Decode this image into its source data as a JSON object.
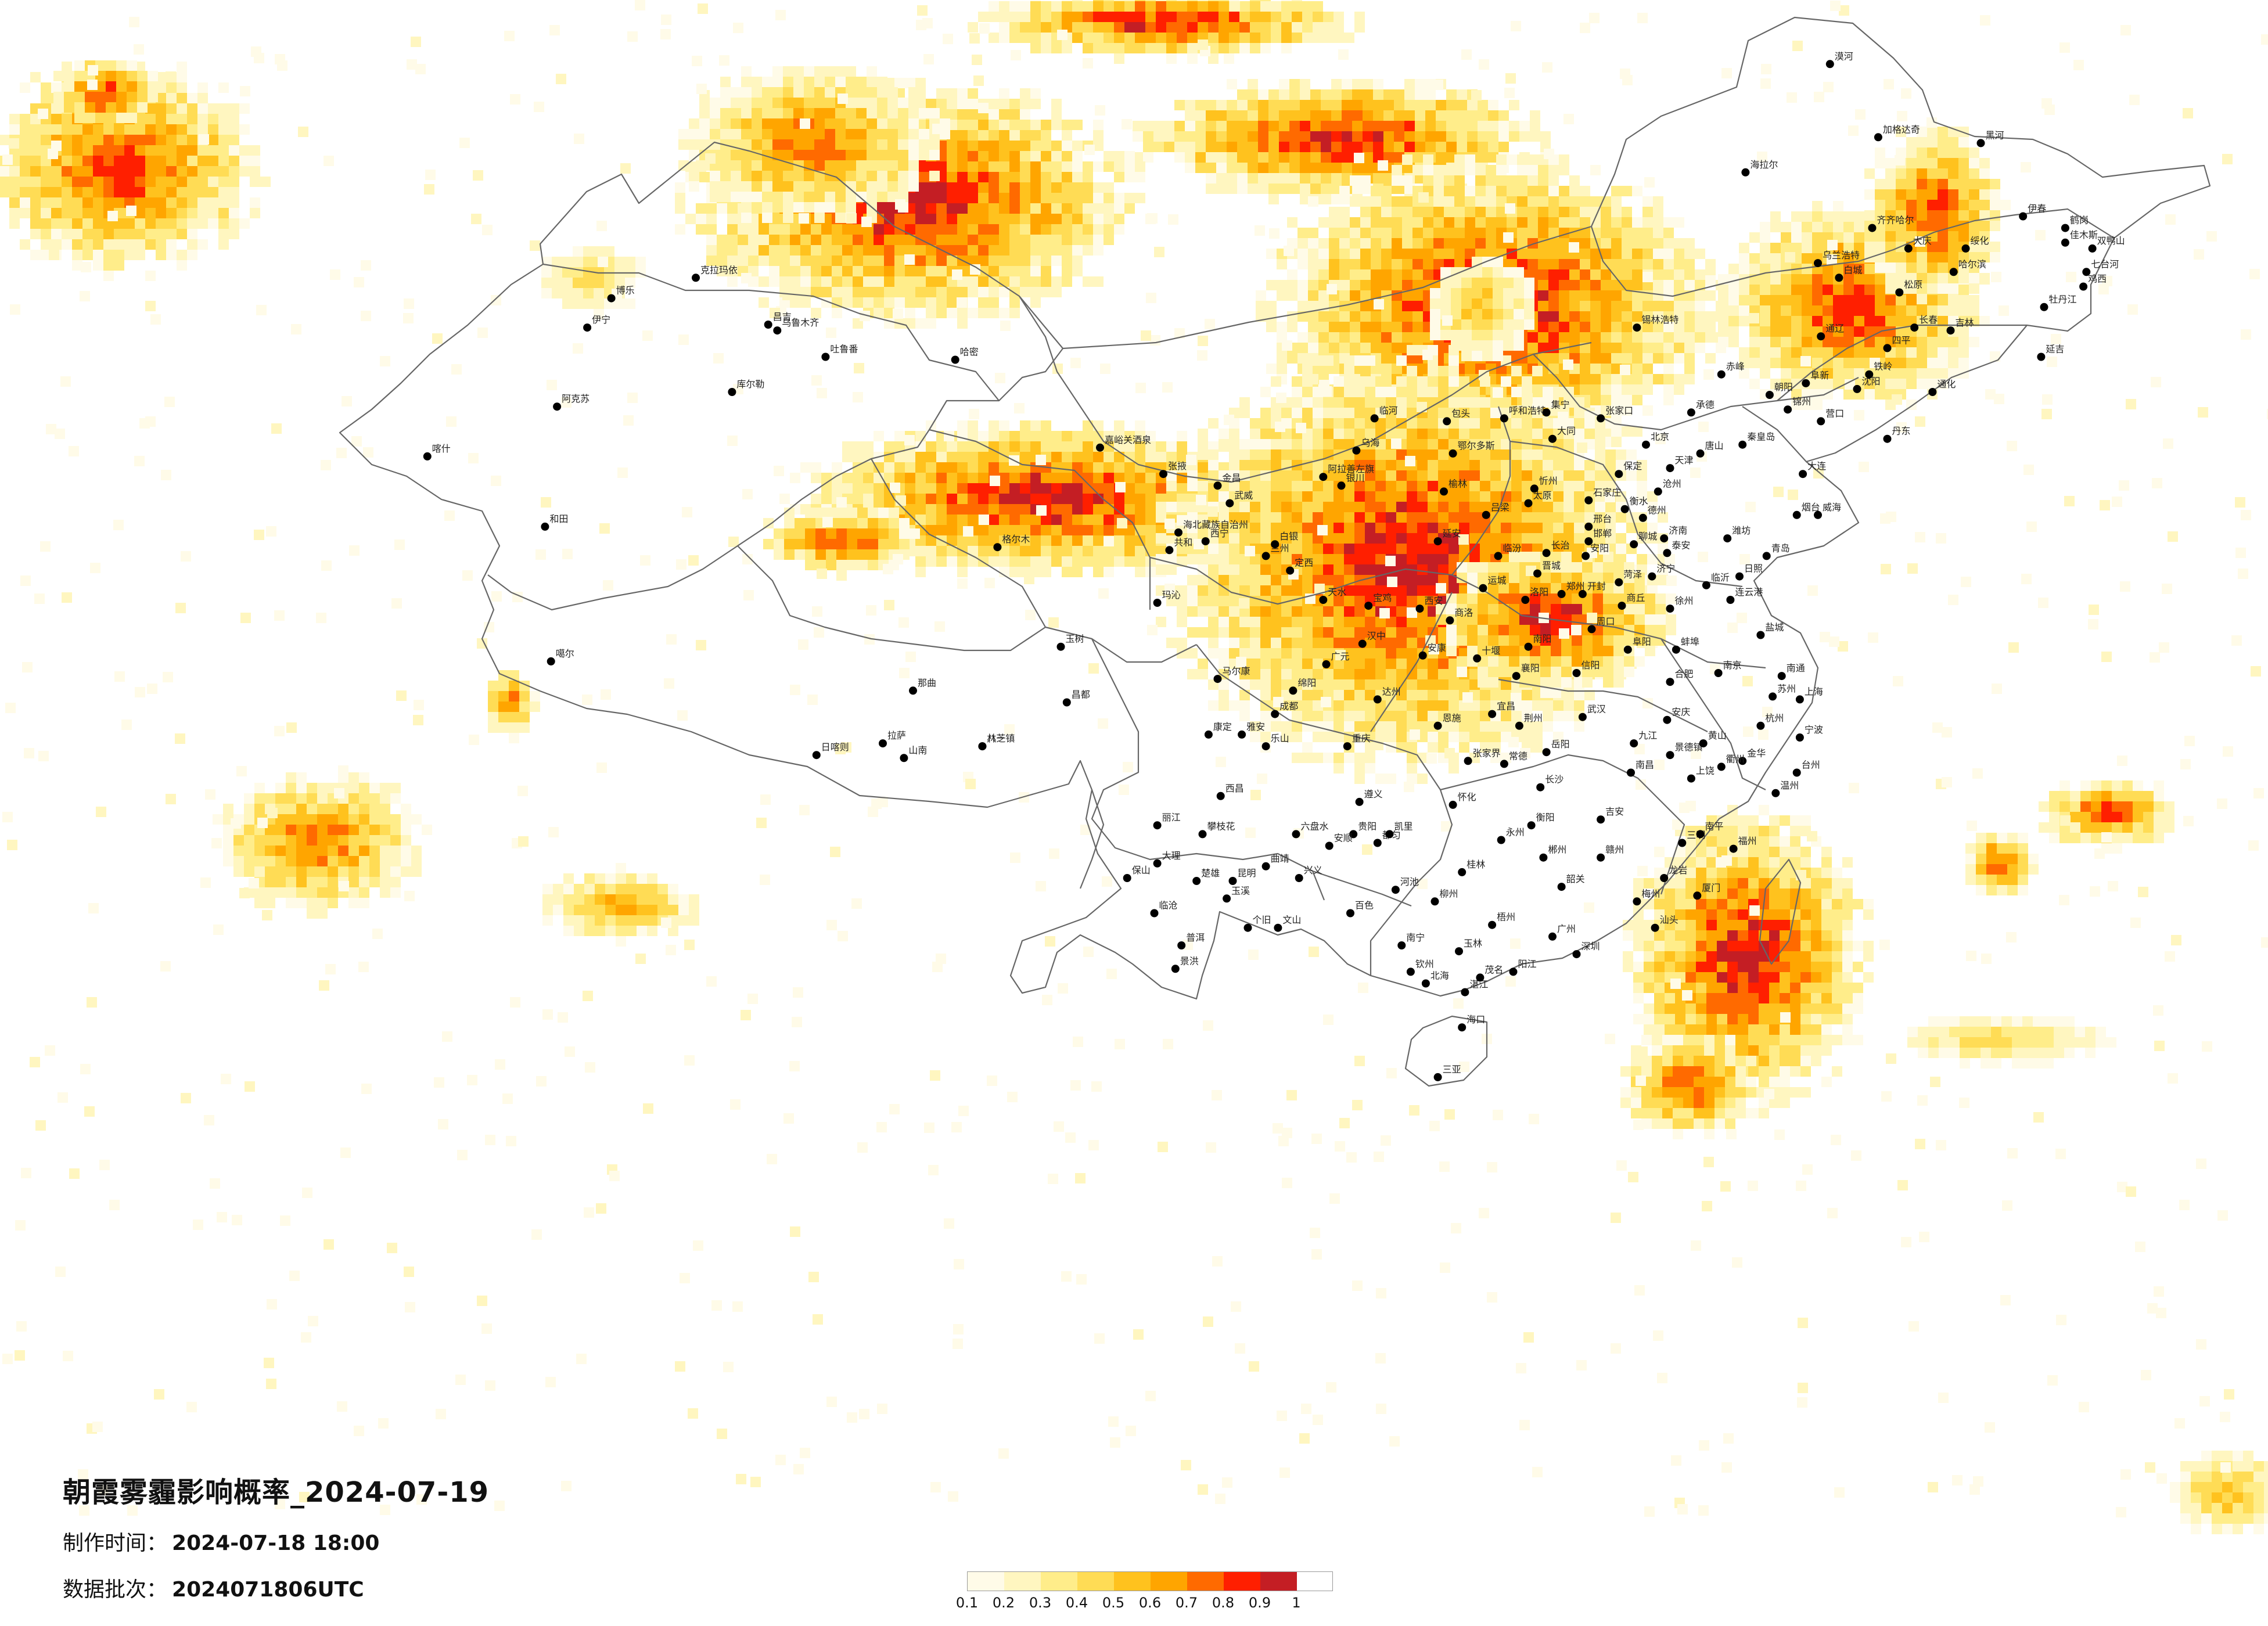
{
  "title": "朝霞雾霾影响概率_2024-07-19",
  "made_time": {
    "label": "制作时间：",
    "value": "2024-07-18 18:00"
  },
  "data_batch": {
    "label": "数据批次：",
    "value": "2024071806UTC"
  },
  "legend": {
    "ticks": [
      "0.1",
      "0.2",
      "0.3",
      "0.4",
      "0.5",
      "0.6",
      "0.7",
      "0.8",
      "0.9",
      "1"
    ],
    "colors": [
      "#fffbe8",
      "#fff6c0",
      "#ffed8a",
      "#ffdc55",
      "#ffc21e",
      "#ffa500",
      "#ff6a00",
      "#ff1f00",
      "#c41e24"
    ]
  },
  "cities": [
    {
      "name": "克拉玛依",
      "lon": 84.9,
      "lat": 45.6
    },
    {
      "name": "昌吉",
      "lon": 87.3,
      "lat": 44.0
    },
    {
      "name": "乌鲁木齐",
      "lon": 87.6,
      "lat": 43.8
    },
    {
      "name": "吐鲁番",
      "lon": 89.2,
      "lat": 42.9
    },
    {
      "name": "哈密",
      "lon": 93.5,
      "lat": 42.8
    },
    {
      "name": "伊宁",
      "lon": 81.3,
      "lat": 43.9
    },
    {
      "name": "博乐",
      "lon": 82.1,
      "lat": 44.9
    },
    {
      "name": "库尔勒",
      "lon": 86.1,
      "lat": 41.7
    },
    {
      "name": "阿克苏",
      "lon": 80.3,
      "lat": 41.2
    },
    {
      "name": "喀什",
      "lon": 76.0,
      "lat": 39.5
    },
    {
      "name": "和田",
      "lon": 79.9,
      "lat": 37.1
    },
    {
      "name": "嘉峪关酒泉",
      "lon": 98.3,
      "lat": 39.8
    },
    {
      "name": "张掖",
      "lon": 100.4,
      "lat": 38.9
    },
    {
      "name": "金昌",
      "lon": 102.2,
      "lat": 38.5
    },
    {
      "name": "武威",
      "lon": 102.6,
      "lat": 37.9
    },
    {
      "name": "海北藏族自治州",
      "lon": 100.9,
      "lat": 36.9
    },
    {
      "name": "西宁",
      "lon": 101.8,
      "lat": 36.6
    },
    {
      "name": "共和",
      "lon": 100.6,
      "lat": 36.3
    },
    {
      "name": "兰州",
      "lon": 103.8,
      "lat": 36.1
    },
    {
      "name": "白银",
      "lon": 104.1,
      "lat": 36.5
    },
    {
      "name": "阿拉善左旗",
      "lon": 105.7,
      "lat": 38.8
    },
    {
      "name": "银川",
      "lon": 106.3,
      "lat": 38.5
    },
    {
      "name": "定西",
      "lon": 104.6,
      "lat": 35.6
    },
    {
      "name": "天水",
      "lon": 105.7,
      "lat": 34.6
    },
    {
      "name": "玛沁",
      "lon": 100.2,
      "lat": 34.5
    },
    {
      "name": "格尔木",
      "lon": 94.9,
      "lat": 36.4
    },
    {
      "name": "噶尔",
      "lon": 80.1,
      "lat": 32.5
    },
    {
      "name": "日喀则",
      "lon": 88.9,
      "lat": 29.3
    },
    {
      "name": "拉萨",
      "lon": 91.1,
      "lat": 29.7
    },
    {
      "name": "山南",
      "lon": 91.8,
      "lat": 29.2
    },
    {
      "name": "八一镇",
      "lon": 94.4,
      "lat": 29.6
    },
    {
      "name": "林芝",
      "lon": 94.4,
      "lat": 29.6
    },
    {
      "name": "那曲",
      "lon": 92.1,
      "lat": 31.5
    },
    {
      "name": "玉树",
      "lon": 97.0,
      "lat": 33.0
    },
    {
      "name": "昌都",
      "lon": 97.2,
      "lat": 31.1
    },
    {
      "name": "马尔康",
      "lon": 102.2,
      "lat": 31.9
    },
    {
      "name": "康定",
      "lon": 101.9,
      "lat": 30.0
    },
    {
      "name": "雅安",
      "lon": 103.0,
      "lat": 30.0
    },
    {
      "name": "成都",
      "lon": 104.1,
      "lat": 30.7
    },
    {
      "name": "绵阳",
      "lon": 104.7,
      "lat": 31.5
    },
    {
      "name": "乐山",
      "lon": 103.8,
      "lat": 29.6
    },
    {
      "name": "西昌",
      "lon": 102.3,
      "lat": 27.9
    },
    {
      "name": "攀枝花",
      "lon": 101.7,
      "lat": 26.6
    },
    {
      "name": "丽江",
      "lon": 100.2,
      "lat": 26.9
    },
    {
      "name": "大理",
      "lon": 100.2,
      "lat": 25.6
    },
    {
      "name": "保山",
      "lon": 99.2,
      "lat": 25.1
    },
    {
      "name": "楚雄",
      "lon": 101.5,
      "lat": 25.0
    },
    {
      "name": "昆明",
      "lon": 102.7,
      "lat": 25.0
    },
    {
      "name": "曲靖",
      "lon": 103.8,
      "lat": 25.5
    },
    {
      "name": "玉溪",
      "lon": 102.5,
      "lat": 24.4
    },
    {
      "name": "普洱",
      "lon": 101.0,
      "lat": 22.8
    },
    {
      "name": "景洪",
      "lon": 100.8,
      "lat": 22.0
    },
    {
      "name": "个旧",
      "lon": 103.2,
      "lat": 23.4
    },
    {
      "name": "文山",
      "lon": 104.2,
      "lat": 23.4
    },
    {
      "name": "临沧",
      "lon": 100.1,
      "lat": 23.9
    },
    {
      "name": "贵阳",
      "lon": 106.7,
      "lat": 26.6
    },
    {
      "name": "遵义",
      "lon": 106.9,
      "lat": 27.7
    },
    {
      "name": "六盘水",
      "lon": 104.8,
      "lat": 26.6
    },
    {
      "name": "安顺",
      "lon": 105.9,
      "lat": 26.2
    },
    {
      "name": "都匀",
      "lon": 107.5,
      "lat": 26.3
    },
    {
      "name": "凯里",
      "lon": 107.9,
      "lat": 26.6
    },
    {
      "name": "兴义",
      "lon": 104.9,
      "lat": 25.1
    },
    {
      "name": "重庆",
      "lon": 106.5,
      "lat": 29.6
    },
    {
      "name": "达州",
      "lon": 107.5,
      "lat": 31.2
    },
    {
      "name": "广元",
      "lon": 105.8,
      "lat": 32.4
    },
    {
      "name": "汉中",
      "lon": 107.0,
      "lat": 33.1
    },
    {
      "name": "宝鸡",
      "lon": 107.2,
      "lat": 34.4
    },
    {
      "name": "西安",
      "lon": 108.9,
      "lat": 34.3
    },
    {
      "name": "延安",
      "lon": 109.5,
      "lat": 36.6
    },
    {
      "name": "榆林",
      "lon": 109.7,
      "lat": 38.3
    },
    {
      "name": "安康",
      "lon": 109.0,
      "lat": 32.7
    },
    {
      "name": "商洛",
      "lon": 109.9,
      "lat": 33.9
    },
    {
      "name": "南宁",
      "lon": 108.3,
      "lat": 22.8
    },
    {
      "name": "柳州",
      "lon": 109.4,
      "lat": 24.3
    },
    {
      "name": "桂林",
      "lon": 110.3,
      "lat": 25.3
    },
    {
      "name": "梧州",
      "lon": 111.3,
      "lat": 23.5
    },
    {
      "name": "百色",
      "lon": 106.6,
      "lat": 23.9
    },
    {
      "name": "河池",
      "lon": 108.1,
      "lat": 24.7
    },
    {
      "name": "钦州",
      "lon": 108.6,
      "lat": 21.9
    },
    {
      "name": "北海",
      "lon": 109.1,
      "lat": 21.5
    },
    {
      "name": "玉林",
      "lon": 110.2,
      "lat": 22.6
    },
    {
      "name": "海口",
      "lon": 110.3,
      "lat": 20.0
    },
    {
      "name": "三亚",
      "lon": 109.5,
      "lat": 18.3
    },
    {
      "name": "湛江",
      "lon": 110.4,
      "lat": 21.2
    },
    {
      "name": "茂名",
      "lon": 110.9,
      "lat": 21.7
    },
    {
      "name": "阳江",
      "lon": 112.0,
      "lat": 21.9
    },
    {
      "name": "广州",
      "lon": 113.3,
      "lat": 23.1
    },
    {
      "name": "深圳",
      "lon": 114.1,
      "lat": 22.5
    },
    {
      "name": "韶关",
      "lon": 113.6,
      "lat": 24.8
    },
    {
      "name": "梅州",
      "lon": 116.1,
      "lat": 24.3
    },
    {
      "name": "汕头",
      "lon": 116.7,
      "lat": 23.4
    },
    {
      "name": "厦门",
      "lon": 118.1,
      "lat": 24.5
    },
    {
      "name": "福州",
      "lon": 119.3,
      "lat": 26.1
    },
    {
      "name": "龙岩",
      "lon": 117.0,
      "lat": 25.1
    },
    {
      "name": "三明",
      "lon": 117.6,
      "lat": 26.3
    },
    {
      "name": "南平",
      "lon": 118.2,
      "lat": 26.6
    },
    {
      "name": "长沙",
      "lon": 112.9,
      "lat": 28.2
    },
    {
      "name": "衡阳",
      "lon": 112.6,
      "lat": 26.9
    },
    {
      "name": "郴州",
      "lon": 113.0,
      "lat": 25.8
    },
    {
      "name": "怀化",
      "lon": 110.0,
      "lat": 27.6
    },
    {
      "name": "常德",
      "lon": 111.7,
      "lat": 29.0
    },
    {
      "name": "岳阳",
      "lon": 113.1,
      "lat": 29.4
    },
    {
      "name": "张家界",
      "lon": 110.5,
      "lat": 29.1
    },
    {
      "name": "永州",
      "lon": 111.6,
      "lat": 26.4
    },
    {
      "name": "南昌",
      "lon": 115.9,
      "lat": 28.7
    },
    {
      "name": "九江",
      "lon": 116.0,
      "lat": 29.7
    },
    {
      "name": "赣州",
      "lon": 114.9,
      "lat": 25.8
    },
    {
      "name": "吉安",
      "lon": 114.9,
      "lat": 27.1
    },
    {
      "name": "上饶",
      "lon": 117.9,
      "lat": 28.5
    },
    {
      "name": "景德镇",
      "lon": 117.2,
      "lat": 29.3
    },
    {
      "name": "武汉",
      "lon": 114.3,
      "lat": 30.6
    },
    {
      "name": "宜昌",
      "lon": 111.3,
      "lat": 30.7
    },
    {
      "name": "荆州",
      "lon": 112.2,
      "lat": 30.3
    },
    {
      "name": "襄阳",
      "lon": 112.1,
      "lat": 32.0
    },
    {
      "name": "十堰",
      "lon": 110.8,
      "lat": 32.6
    },
    {
      "name": "恩施",
      "lon": 109.5,
      "lat": 30.3
    },
    {
      "name": "郑州",
      "lon": 113.6,
      "lat": 34.8
    },
    {
      "name": "洛阳",
      "lon": 112.4,
      "lat": 34.6
    },
    {
      "name": "开封",
      "lon": 114.3,
      "lat": 34.8
    },
    {
      "name": "南阳",
      "lon": 112.5,
      "lat": 33.0
    },
    {
      "name": "信阳",
      "lon": 114.1,
      "lat": 32.1
    },
    {
      "name": "商丘",
      "lon": 115.6,
      "lat": 34.4
    },
    {
      "name": "周口",
      "lon": 114.6,
      "lat": 33.6
    },
    {
      "name": "安阳",
      "lon": 114.4,
      "lat": 36.1
    },
    {
      "name": "合肥",
      "lon": 117.2,
      "lat": 31.8
    },
    {
      "name": "阜阳",
      "lon": 115.8,
      "lat": 32.9
    },
    {
      "name": "蚌埠",
      "lon": 117.4,
      "lat": 32.9
    },
    {
      "name": "安庆",
      "lon": 117.1,
      "lat": 30.5
    },
    {
      "name": "黄山",
      "lon": 118.3,
      "lat": 29.7
    },
    {
      "name": "南京",
      "lon": 118.8,
      "lat": 32.1
    },
    {
      "name": "徐州",
      "lon": 117.2,
      "lat": 34.3
    },
    {
      "name": "连云港",
      "lon": 119.2,
      "lat": 34.6
    },
    {
      "name": "盐城",
      "lon": 120.2,
      "lat": 33.4
    },
    {
      "name": "南通",
      "lon": 120.9,
      "lat": 32.0
    },
    {
      "name": "苏州",
      "lon": 120.6,
      "lat": 31.3
    },
    {
      "name": "上海",
      "lon": 121.5,
      "lat": 31.2
    },
    {
      "name": "杭州",
      "lon": 120.2,
      "lat": 30.3
    },
    {
      "name": "宁波",
      "lon": 121.5,
      "lat": 29.9
    },
    {
      "name": "温州",
      "lon": 120.7,
      "lat": 28.0
    },
    {
      "name": "金华",
      "lon": 119.6,
      "lat": 29.1
    },
    {
      "name": "衢州",
      "lon": 118.9,
      "lat": 28.9
    },
    {
      "name": "台州",
      "lon": 121.4,
      "lat": 28.7
    },
    {
      "name": "济南",
      "lon": 117.0,
      "lat": 36.7
    },
    {
      "name": "青岛",
      "lon": 120.4,
      "lat": 36.1
    },
    {
      "name": "烟台",
      "lon": 121.4,
      "lat": 37.5
    },
    {
      "name": "威海",
      "lon": 122.1,
      "lat": 37.5
    },
    {
      "name": "潍坊",
      "lon": 119.1,
      "lat": 36.7
    },
    {
      "name": "临沂",
      "lon": 118.4,
      "lat": 35.1
    },
    {
      "name": "济宁",
      "lon": 116.6,
      "lat": 35.4
    },
    {
      "name": "德州",
      "lon": 116.3,
      "lat": 37.4
    },
    {
      "name": "聊城",
      "lon": 116.0,
      "lat": 36.5
    },
    {
      "name": "菏泽",
      "lon": 115.5,
      "lat": 35.2
    },
    {
      "name": "泰安",
      "lon": 117.1,
      "lat": 36.2
    },
    {
      "name": "日照",
      "lon": 119.5,
      "lat": 35.4
    },
    {
      "name": "石家庄",
      "lon": 114.5,
      "lat": 38.0
    },
    {
      "name": "保定",
      "lon": 115.5,
      "lat": 38.9
    },
    {
      "name": "张家口",
      "lon": 114.9,
      "lat": 40.8
    },
    {
      "name": "承德",
      "lon": 117.9,
      "lat": 41.0
    },
    {
      "name": "唐山",
      "lon": 118.2,
      "lat": 39.6
    },
    {
      "name": "秦皇岛",
      "lon": 119.6,
      "lat": 39.9
    },
    {
      "name": "沧州",
      "lon": 116.8,
      "lat": 38.3
    },
    {
      "name": "衡水",
      "lon": 115.7,
      "lat": 37.7
    },
    {
      "name": "邢台",
      "lon": 114.5,
      "lat": 37.1
    },
    {
      "name": "邯郸",
      "lon": 114.5,
      "lat": 36.6
    },
    {
      "name": "北京",
      "lon": 116.4,
      "lat": 39.9
    },
    {
      "name": "天津",
      "lon": 117.2,
      "lat": 39.1
    },
    {
      "name": "太原",
      "lon": 112.5,
      "lat": 37.9
    },
    {
      "name": "大同",
      "lon": 113.3,
      "lat": 40.1
    },
    {
      "name": "忻州",
      "lon": 112.7,
      "lat": 38.4
    },
    {
      "name": "吕梁",
      "lon": 111.1,
      "lat": 37.5
    },
    {
      "name": "临汾",
      "lon": 111.5,
      "lat": 36.1
    },
    {
      "name": "运城",
      "lon": 111.0,
      "lat": 35.0
    },
    {
      "name": "长治",
      "lon": 113.1,
      "lat": 36.2
    },
    {
      "name": "晋城",
      "lon": 112.8,
      "lat": 35.5
    },
    {
      "name": "呼和浩特",
      "lon": 111.7,
      "lat": 40.8
    },
    {
      "name": "包头",
      "lon": 109.8,
      "lat": 40.7
    },
    {
      "name": "鄂尔多斯",
      "lon": 110.0,
      "lat": 39.6
    },
    {
      "name": "临河",
      "lon": 107.4,
      "lat": 40.8
    },
    {
      "name": "乌海",
      "lon": 106.8,
      "lat": 39.7
    },
    {
      "name": "集宁",
      "lon": 113.1,
      "lat": 41.0
    },
    {
      "name": "锡林浩特",
      "lon": 116.1,
      "lat": 43.9
    },
    {
      "name": "赤峰",
      "lon": 118.9,
      "lat": 42.3
    },
    {
      "name": "通辽",
      "lon": 122.2,
      "lat": 43.6
    },
    {
      "name": "乌兰浩特",
      "lon": 122.1,
      "lat": 46.1
    },
    {
      "name": "海拉尔",
      "lon": 119.7,
      "lat": 49.2
    },
    {
      "name": "加格达奇",
      "lon": 124.1,
      "lat": 50.4
    },
    {
      "name": "漠河",
      "lon": 122.5,
      "lat": 52.9
    },
    {
      "name": "黑河",
      "lon": 127.5,
      "lat": 50.2
    },
    {
      "name": "齐齐哈尔",
      "lon": 123.9,
      "lat": 47.3
    },
    {
      "name": "大庆",
      "lon": 125.1,
      "lat": 46.6
    },
    {
      "name": "绥化",
      "lon": 127.0,
      "lat": 46.6
    },
    {
      "name": "哈尔滨",
      "lon": 126.6,
      "lat": 45.8
    },
    {
      "name": "伊春",
      "lon": 128.9,
      "lat": 47.7
    },
    {
      "name": "鹤岗",
      "lon": 130.3,
      "lat": 47.3
    },
    {
      "name": "佳木斯",
      "lon": 130.3,
      "lat": 46.8
    },
    {
      "name": "双鸭山",
      "lon": 131.2,
      "lat": 46.6
    },
    {
      "name": "七台河",
      "lon": 131.0,
      "lat": 45.8
    },
    {
      "name": "鸡西",
      "lon": 130.9,
      "lat": 45.3
    },
    {
      "name": "牡丹江",
      "lon": 129.6,
      "lat": 44.6
    },
    {
      "name": "白城",
      "lon": 122.8,
      "lat": 45.6
    },
    {
      "name": "松原",
      "lon": 124.8,
      "lat": 45.1
    },
    {
      "name": "长春",
      "lon": 125.3,
      "lat": 43.9
    },
    {
      "name": "吉林",
      "lon": 126.5,
      "lat": 43.8
    },
    {
      "name": "四平",
      "lon": 124.4,
      "lat": 43.2
    },
    {
      "name": "延吉",
      "lon": 129.5,
      "lat": 42.9
    },
    {
      "name": "通化",
      "lon": 125.9,
      "lat": 41.7
    },
    {
      "name": "沈阳",
      "lon": 123.4,
      "lat": 41.8
    },
    {
      "name": "铁岭",
      "lon": 123.8,
      "lat": 42.3
    },
    {
      "name": "锦州",
      "lon": 121.1,
      "lat": 41.1
    },
    {
      "name": "阜新",
      "lon": 121.7,
      "lat": 42.0
    },
    {
      "name": "营口",
      "lon": 122.2,
      "lat": 40.7
    },
    {
      "name": "丹东",
      "lon": 124.4,
      "lat": 40.1
    },
    {
      "name": "大连",
      "lon": 121.6,
      "lat": 38.9
    },
    {
      "name": "朝阳",
      "lon": 120.5,
      "lat": 41.6
    }
  ]
}
